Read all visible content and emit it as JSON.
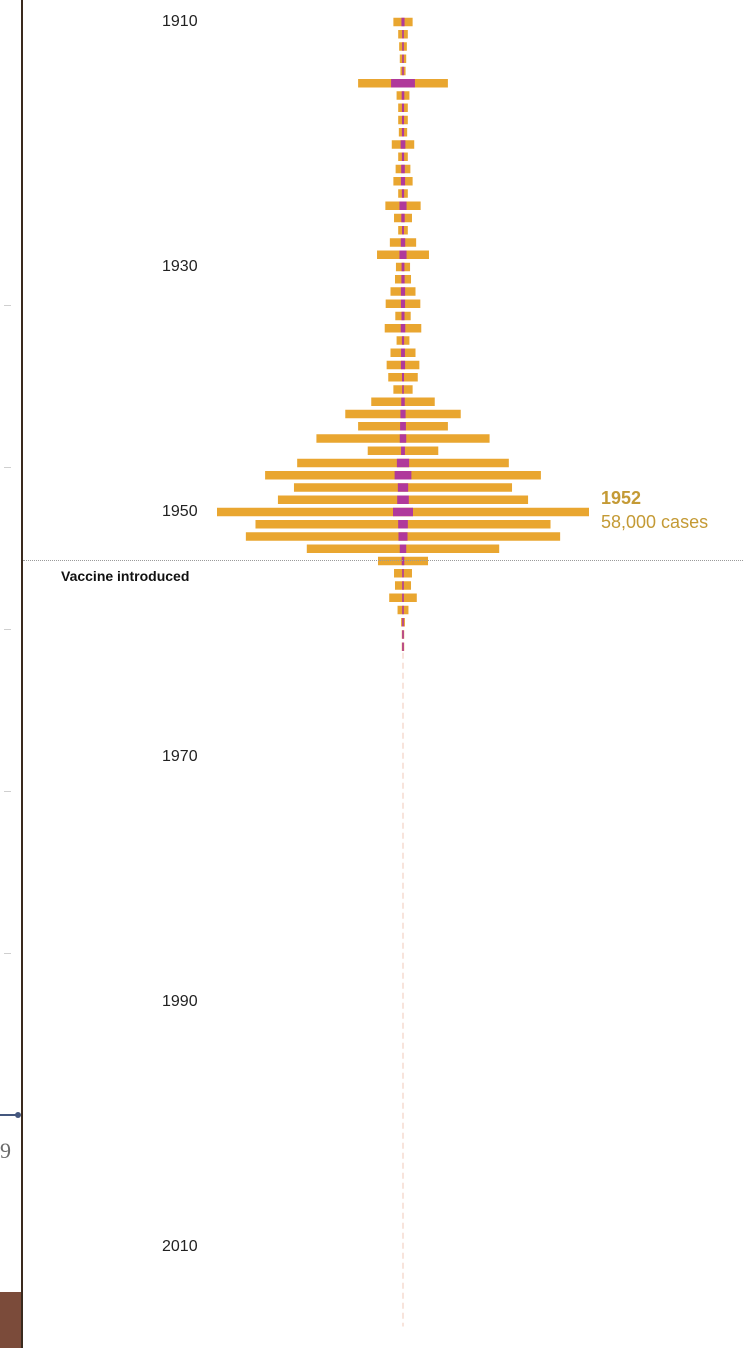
{
  "chart_data": {
    "type": "bar",
    "title": "",
    "xlabel": "",
    "ylabel": "",
    "orientation": "horizontal-mirrored",
    "year_start": 1910,
    "year_end": 2016,
    "year_ticks": [
      "1910",
      "1930",
      "1950",
      "1970",
      "1990",
      "2010"
    ],
    "cases_values": [
      3000,
      1500,
      1200,
      1000,
      800,
      14000,
      2000,
      1500,
      1500,
      1300,
      3500,
      1500,
      2300,
      3000,
      1500,
      5500,
      2800,
      1500,
      4100,
      8100,
      2200,
      2500,
      3900,
      5400,
      2400,
      5700,
      2000,
      3900,
      5100,
      4600,
      3000,
      9900,
      18000,
      14000,
      27000,
      11000,
      33000,
      43000,
      34000,
      39000,
      58000,
      46000,
      49000,
      30000,
      7800,
      2800,
      2500,
      4300,
      1700,
      600,
      200,
      100
    ],
    "deaths_values": [
      480,
      180,
      150,
      130,
      100,
      3700,
      400,
      330,
      320,
      340,
      730,
      350,
      560,
      640,
      350,
      1100,
      520,
      300,
      680,
      1100,
      440,
      500,
      650,
      640,
      470,
      700,
      350,
      600,
      650,
      320,
      200,
      540,
      800,
      900,
      1000,
      600,
      1900,
      2600,
      1600,
      1800,
      3100,
      1500,
      1400,
      1000,
      400,
      200,
      150,
      230,
      100,
      50,
      20,
      10
    ],
    "series": [
      {
        "name": "",
        "color": "#e9a630"
      },
      {
        "name": "",
        "color": "#b0399b"
      }
    ],
    "vaccine_year": 1955,
    "vaccine_label": "Vaccine introduced",
    "peak_annotation": {
      "year": "1952",
      "cases": "58,000 cases"
    },
    "annotation_color": "#c49a35"
  }
}
